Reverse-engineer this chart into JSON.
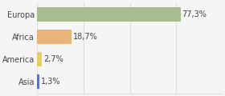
{
  "categories": [
    "Europa",
    "Africa",
    "America",
    "Asia"
  ],
  "values": [
    77.3,
    18.7,
    2.7,
    1.3
  ],
  "labels": [
    "77,3%",
    "18,7%",
    "2,7%",
    "1,3%"
  ],
  "bar_colors": [
    "#a8bc8f",
    "#e8b47a",
    "#e8d060",
    "#6070c0"
  ],
  "xlim": [
    0,
    100
  ],
  "background_color": "#f5f5f5",
  "bar_height": 0.65,
  "label_fontsize": 7.0,
  "tick_fontsize": 7.0,
  "grid_color": "#dddddd",
  "grid_xticks": [
    0,
    25,
    50,
    75,
    100
  ]
}
